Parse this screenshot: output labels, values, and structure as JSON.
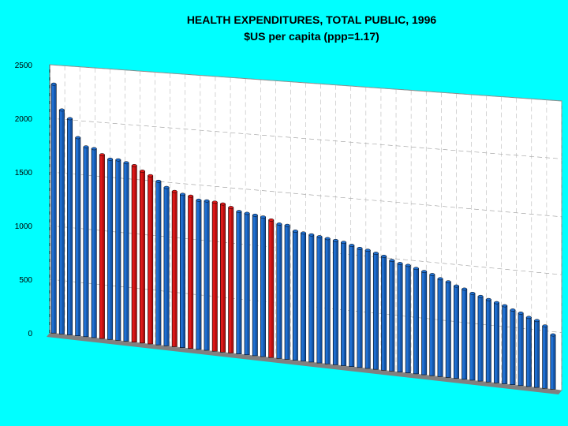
{
  "chart_data": {
    "type": "bar",
    "title": "HEALTH EXPENDITURES, TOTAL PUBLIC, 1996",
    "subtitle": "$US per capita (ppp=1.17)",
    "xlabel": "",
    "ylabel": "",
    "ylim": [
      0,
      2500
    ],
    "yticks": [
      0,
      500,
      1000,
      1500,
      2000,
      2500
    ],
    "grid": true,
    "legend": "none",
    "colors": {
      "default": "#1f6fd1",
      "highlight": "#e01818",
      "floor": "#808080",
      "plot_bg": "#ffffff"
    },
    "values": [
      2320,
      2085,
      2010,
      1840,
      1760,
      1750,
      1700,
      1665,
      1665,
      1645,
      1625,
      1580,
      1545,
      1500,
      1450,
      1420,
      1400,
      1390,
      1360,
      1360,
      1355,
      1345,
      1320,
      1290,
      1280,
      1270,
      1260,
      1240,
      1210,
      1205,
      1160,
      1150,
      1140,
      1130,
      1120,
      1110,
      1100,
      1080,
      1060,
      1050,
      1030,
      1010,
      980,
      960,
      950,
      930,
      910,
      890,
      860,
      840,
      810,
      790,
      760,
      740,
      720,
      700,
      680,
      650,
      630,
      600,
      580,
      540,
      470
    ],
    "highlighted_indices": [
      6,
      10,
      11,
      12,
      15,
      17,
      20,
      21,
      22,
      27
    ]
  }
}
